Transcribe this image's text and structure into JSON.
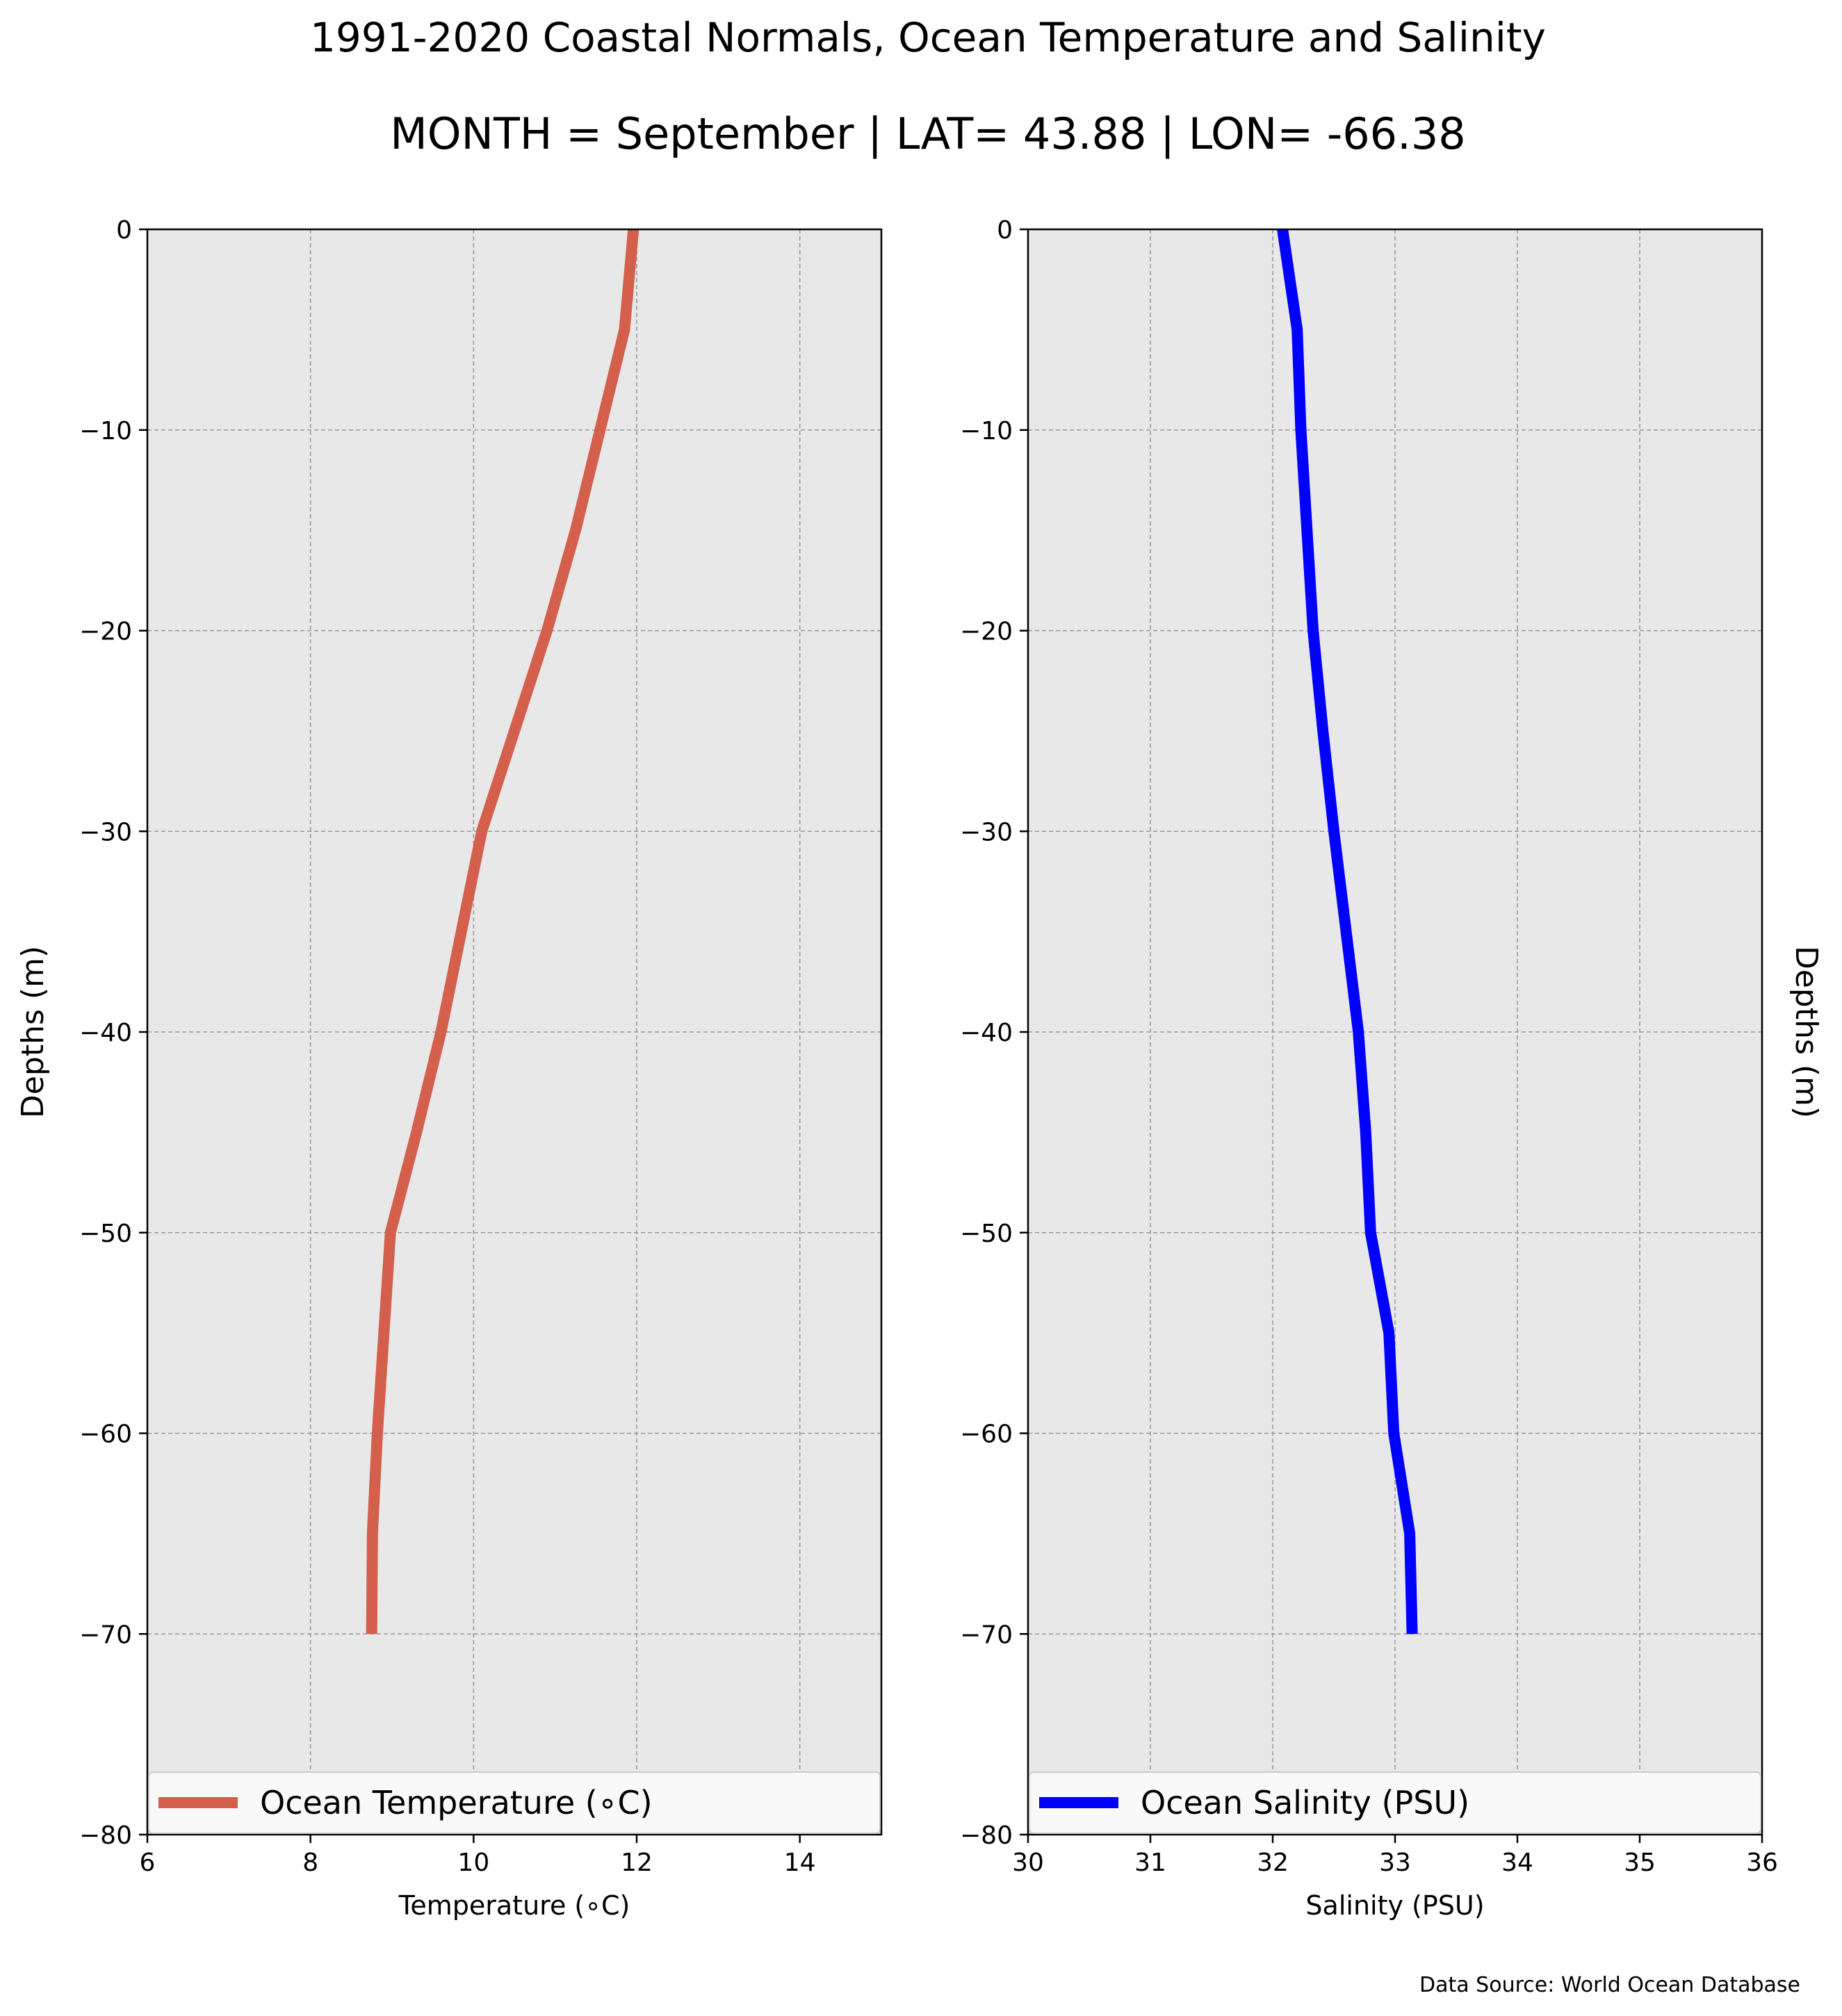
{
  "figure": {
    "title": "1991-2020 Coastal Normals, Ocean Temperature and Salinity",
    "subtitle": "MONTH = September | LAT= 43.88 | LON= -66.38",
    "source": "Data Source: World Ocean Database"
  },
  "colors": {
    "temperature": "#d45f4c",
    "salinity": "#0000ff",
    "plot_bg": "#e8e8e8",
    "grid": "#999999"
  },
  "chart_data": [
    {
      "type": "line",
      "xlabel": "Temperature (∘C)",
      "ylabel": "Depths (m)",
      "xlim": [
        6,
        15
      ],
      "ylim": [
        -80,
        0
      ],
      "xticks": [
        6,
        8,
        10,
        12,
        14
      ],
      "yticks": [
        0,
        -10,
        -20,
        -30,
        -40,
        -50,
        -60,
        -70,
        -80
      ],
      "grid": true,
      "legend": "lower center",
      "series": [
        {
          "name": "Ocean Temperature (∘C)",
          "x": [
            11.96,
            11.85,
            11.55,
            11.25,
            10.9,
            10.5,
            10.1,
            9.85,
            9.6,
            9.3,
            8.98,
            8.9,
            8.82,
            8.76,
            8.75
          ],
          "y": [
            0,
            -5,
            -10,
            -15,
            -20,
            -25,
            -30,
            -35,
            -40,
            -45,
            -50,
            -55,
            -60,
            -65,
            -70
          ]
        }
      ]
    },
    {
      "type": "line",
      "xlabel": "Salinity (PSU)",
      "ylabel": "Depths (m)",
      "xlim": [
        30,
        36
      ],
      "ylim": [
        -80,
        0
      ],
      "xticks": [
        30,
        31,
        32,
        33,
        34,
        35,
        36
      ],
      "yticks": [
        0,
        -10,
        -20,
        -30,
        -40,
        -50,
        -60,
        -70,
        -80
      ],
      "grid": true,
      "legend": "lower center",
      "series": [
        {
          "name": "Ocean Salinity (PSU)",
          "x": [
            32.08,
            32.2,
            32.23,
            32.28,
            32.33,
            32.41,
            32.5,
            32.6,
            32.7,
            32.76,
            32.8,
            32.95,
            32.99,
            33.12,
            33.14
          ],
          "y": [
            0,
            -5,
            -10,
            -15,
            -20,
            -25,
            -30,
            -35,
            -40,
            -45,
            -50,
            -55,
            -60,
            -65,
            -70
          ]
        }
      ]
    }
  ]
}
